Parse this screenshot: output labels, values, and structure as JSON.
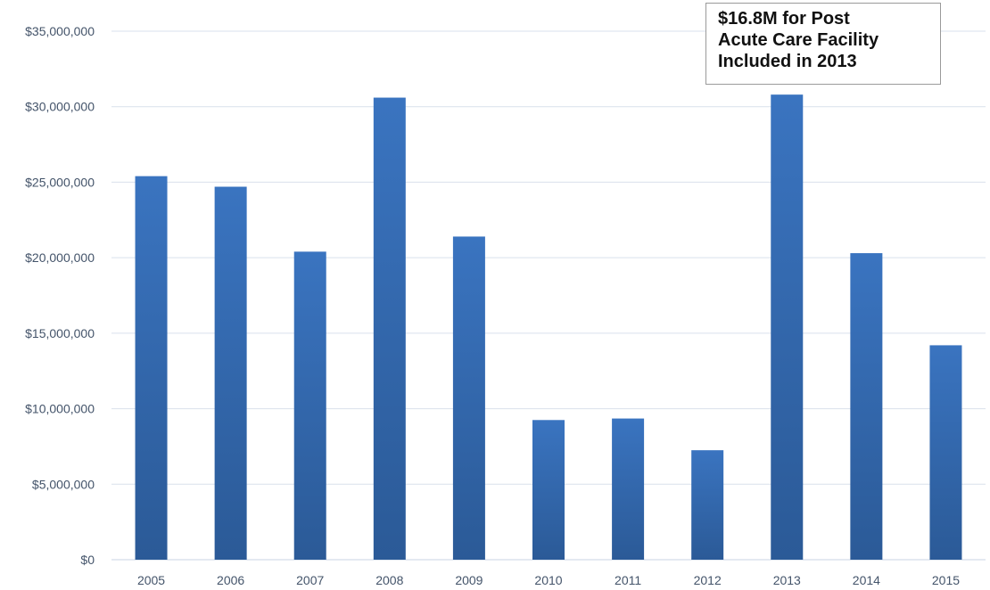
{
  "chart_data": {
    "type": "bar",
    "categories": [
      "2005",
      "2006",
      "2007",
      "2008",
      "2009",
      "2010",
      "2011",
      "2012",
      "2013",
      "2014",
      "2015"
    ],
    "values": [
      25400000,
      24700000,
      20400000,
      30600000,
      21400000,
      9250000,
      9350000,
      7250000,
      30800000,
      20300000,
      14200000
    ],
    "ylim": [
      0,
      35000000
    ],
    "y_ticks": [
      0,
      5000000,
      10000000,
      15000000,
      20000000,
      25000000,
      30000000,
      35000000
    ],
    "y_tick_labels": [
      "$0",
      "$5,000,000",
      "$10,000,000",
      "$15,000,000",
      "$20,000,000",
      "$25,000,000",
      "$30,000,000",
      "$35,000,000"
    ],
    "title": "",
    "xlabel": "",
    "ylabel": "",
    "grid": true,
    "bar_color": "#3a74c0",
    "bar_color_dark": "#2b5a97",
    "annotations": [
      {
        "lines": [
          "$16.8M for Post",
          "Acute Care Facility",
          "Included in 2013"
        ],
        "category": "2013"
      }
    ]
  }
}
